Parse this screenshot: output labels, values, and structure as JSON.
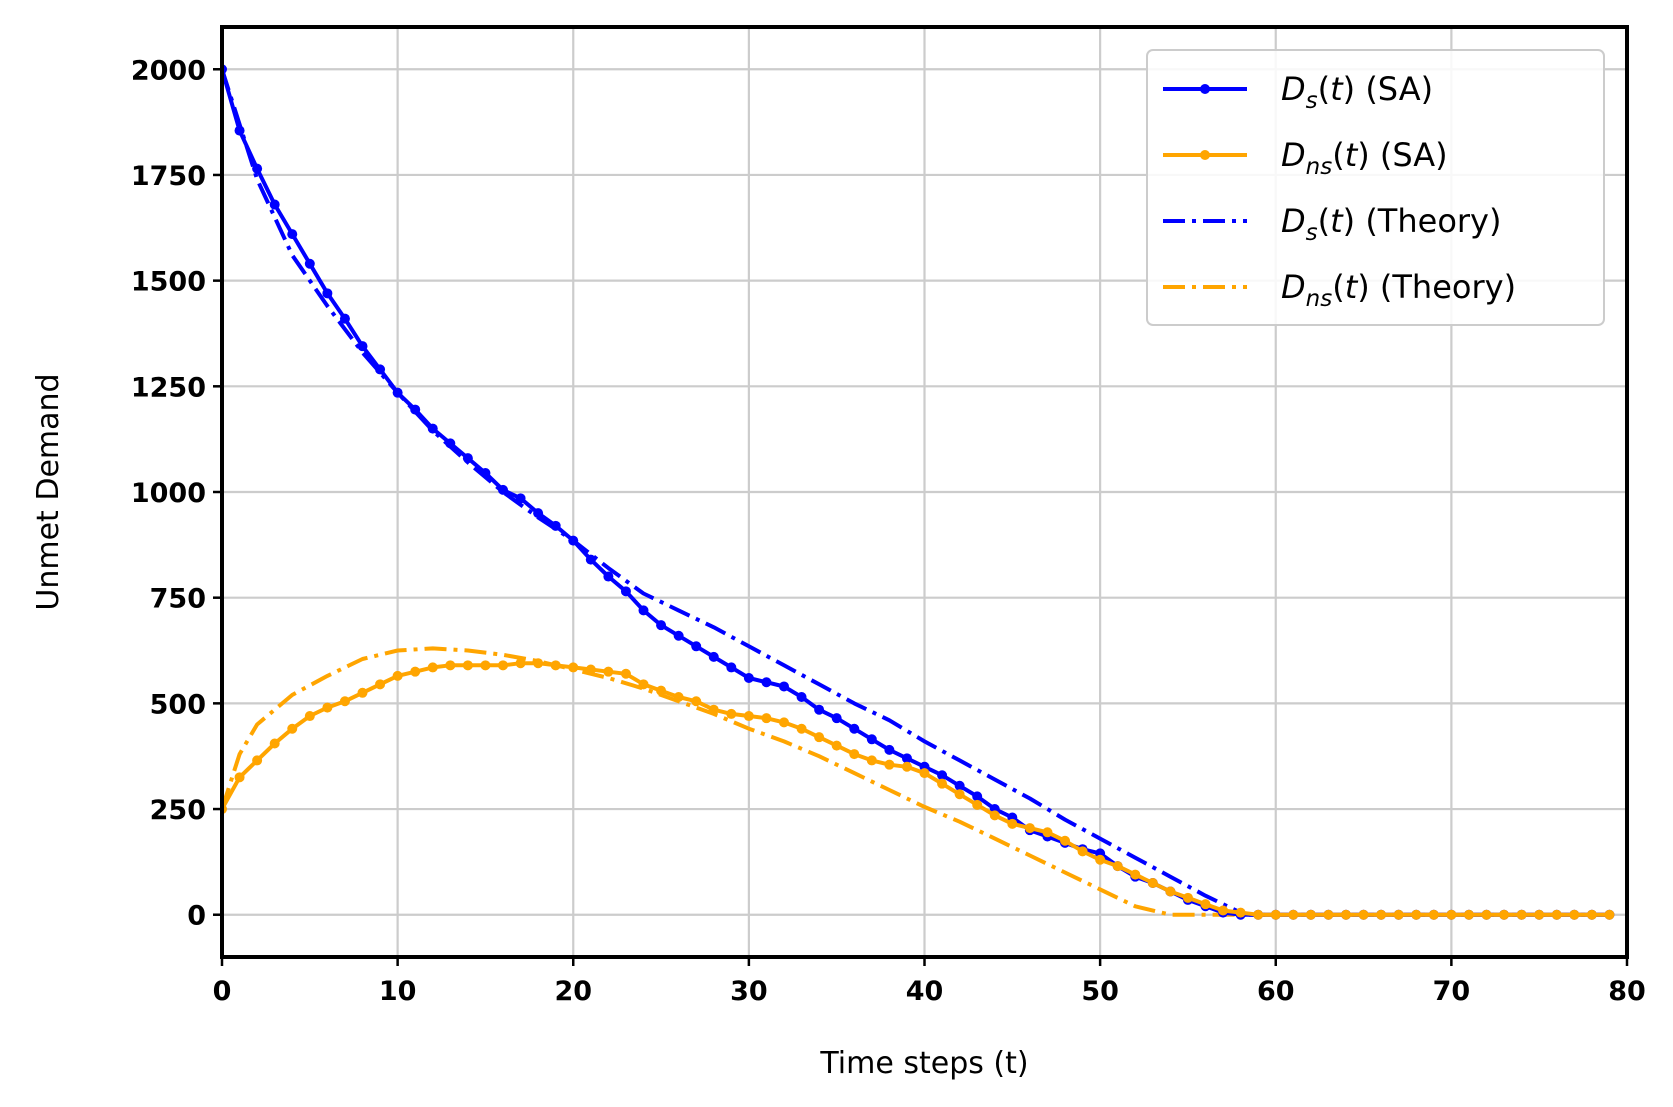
{
  "chart_data": {
    "type": "line",
    "xlabel": "Time steps (t)",
    "ylabel": "Unmet Demand",
    "xlim": [
      0,
      80
    ],
    "ylim": [
      -100,
      2100
    ],
    "x_ticks": [
      0,
      10,
      20,
      30,
      40,
      50,
      60,
      70,
      80
    ],
    "y_ticks": [
      0,
      250,
      500,
      750,
      1000,
      1250,
      1500,
      1750,
      2000
    ],
    "grid": true,
    "legend_position": "upper right",
    "colors": {
      "blue": "#0000ff",
      "orange": "#ffa500"
    },
    "series": [
      {
        "name": "D_s(t) (SA)",
        "legend": {
          "symbol": "D",
          "sub": "s",
          "arg": "(t)",
          "suffix": " (SA)"
        },
        "color": "#0000ff",
        "style": "solid-marker",
        "x": [
          0,
          1,
          2,
          3,
          4,
          5,
          6,
          7,
          8,
          9,
          10,
          11,
          12,
          13,
          14,
          15,
          16,
          17,
          18,
          19,
          20,
          21,
          22,
          23,
          24,
          25,
          26,
          27,
          28,
          29,
          30,
          31,
          32,
          33,
          34,
          35,
          36,
          37,
          38,
          39,
          40,
          41,
          42,
          43,
          44,
          45,
          46,
          47,
          48,
          49,
          50,
          51,
          52,
          53,
          54,
          55,
          56,
          57,
          58,
          59,
          60,
          61,
          62,
          63,
          64,
          65,
          66,
          67,
          68,
          69,
          70,
          71,
          72,
          73,
          74,
          75,
          76,
          77,
          78,
          79
        ],
        "y": [
          2000,
          1855,
          1765,
          1680,
          1610,
          1540,
          1470,
          1410,
          1345,
          1290,
          1235,
          1195,
          1150,
          1115,
          1080,
          1045,
          1005,
          985,
          950,
          920,
          885,
          840,
          800,
          765,
          720,
          685,
          660,
          635,
          610,
          585,
          560,
          550,
          540,
          515,
          485,
          465,
          440,
          415,
          390,
          370,
          350,
          330,
          305,
          280,
          250,
          230,
          200,
          185,
          170,
          155,
          145,
          115,
          90,
          75,
          55,
          35,
          20,
          5,
          0,
          0,
          0,
          0,
          0,
          0,
          0,
          0,
          0,
          0,
          0,
          0,
          0,
          0,
          0,
          0,
          0,
          0,
          0,
          0,
          0,
          0
        ]
      },
      {
        "name": "D_ns(t) (SA)",
        "legend": {
          "symbol": "D",
          "sub": "ns",
          "arg": "(t)",
          "suffix": " (SA)"
        },
        "color": "#ffa500",
        "style": "solid-marker",
        "x": [
          0,
          1,
          2,
          3,
          4,
          5,
          6,
          7,
          8,
          9,
          10,
          11,
          12,
          13,
          14,
          15,
          16,
          17,
          18,
          19,
          20,
          21,
          22,
          23,
          24,
          25,
          26,
          27,
          28,
          29,
          30,
          31,
          32,
          33,
          34,
          35,
          36,
          37,
          38,
          39,
          40,
          41,
          42,
          43,
          44,
          45,
          46,
          47,
          48,
          49,
          50,
          51,
          52,
          53,
          54,
          55,
          56,
          57,
          58,
          59,
          60,
          61,
          62,
          63,
          64,
          65,
          66,
          67,
          68,
          69,
          70,
          71,
          72,
          73,
          74,
          75,
          76,
          77,
          78,
          79
        ],
        "y": [
          250,
          325,
          365,
          405,
          440,
          470,
          490,
          505,
          525,
          545,
          565,
          575,
          585,
          590,
          590,
          590,
          590,
          595,
          595,
          590,
          585,
          580,
          575,
          570,
          545,
          530,
          515,
          505,
          485,
          475,
          470,
          465,
          455,
          440,
          420,
          400,
          380,
          365,
          355,
          350,
          335,
          310,
          285,
          260,
          235,
          215,
          205,
          195,
          175,
          150,
          130,
          115,
          95,
          75,
          55,
          40,
          25,
          10,
          5,
          0,
          0,
          0,
          0,
          0,
          0,
          0,
          0,
          0,
          0,
          0,
          0,
          0,
          0,
          0,
          0,
          0,
          0,
          0,
          0,
          0
        ]
      },
      {
        "name": "D_s(t) (Theory)",
        "legend": {
          "symbol": "D",
          "sub": "s",
          "arg": "(t)",
          "suffix": " (Theory)"
        },
        "color": "#0000ff",
        "style": "dashdot",
        "x": [
          0,
          2,
          4,
          6,
          8,
          10,
          12,
          14,
          16,
          18,
          20,
          22,
          24,
          26,
          28,
          30,
          32,
          34,
          36,
          38,
          40,
          42,
          44,
          46,
          48,
          50,
          52,
          54,
          56,
          58,
          58.5,
          60,
          65,
          70,
          75,
          79
        ],
        "y": [
          2000,
          1740,
          1560,
          1440,
          1330,
          1235,
          1145,
          1070,
          1000,
          940,
          885,
          820,
          760,
          720,
          680,
          635,
          590,
          545,
          500,
          460,
          410,
          365,
          320,
          275,
          225,
          180,
          135,
          90,
          45,
          5,
          0,
          0,
          0,
          0,
          0,
          0
        ]
      },
      {
        "name": "D_ns(t) (Theory)",
        "legend": {
          "symbol": "D",
          "sub": "ns",
          "arg": "(t)",
          "suffix": " (Theory)"
        },
        "color": "#ffa500",
        "style": "dashdot",
        "x": [
          0,
          1,
          2,
          4,
          6,
          8,
          10,
          12,
          14,
          16,
          18,
          20,
          22,
          24,
          26,
          28,
          30,
          32,
          34,
          36,
          38,
          40,
          42,
          44,
          46,
          48,
          50,
          52,
          54,
          55,
          60,
          65,
          70,
          75,
          79
        ],
        "y": [
          250,
          380,
          450,
          520,
          565,
          605,
          625,
          630,
          625,
          615,
          600,
          580,
          560,
          535,
          505,
          475,
          440,
          410,
          375,
          335,
          295,
          255,
          220,
          180,
          140,
          100,
          60,
          20,
          0,
          0,
          0,
          0,
          0,
          0,
          0
        ]
      }
    ]
  }
}
